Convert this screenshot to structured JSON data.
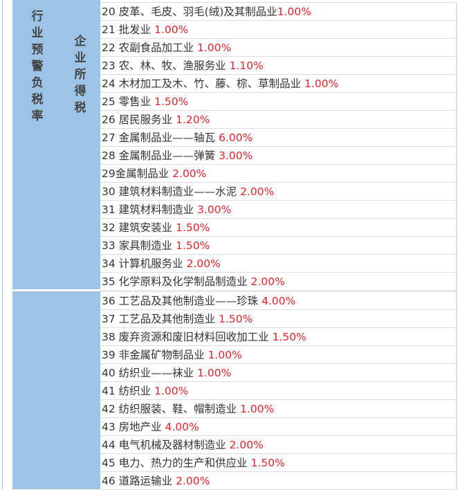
{
  "category_label": "行业预警负税率",
  "tax_label": "企业所得税",
  "colors": {
    "header_blue": "#9dc3e6",
    "rate_red": "#e8222a"
  },
  "section1": [
    {
      "name": "20 皮革、毛皮、羽毛(绒)及其制品业",
      "rate": "1.00%"
    },
    {
      "name": "21 批发业 ",
      "rate": "1.00%"
    },
    {
      "name": "22 农副食品加工业 ",
      "rate": "1.00%"
    },
    {
      "name": "23 农、林、牧、渔服务业 ",
      "rate": "1.10%"
    },
    {
      "name": "24 木材加工及木、竹、藤、棕、草制品业 ",
      "rate": "1.00%"
    },
    {
      "name": "25 零售业 ",
      "rate": "1.50%"
    },
    {
      "name": "26 居民服务业 ",
      "rate": "1.20%"
    },
    {
      "name": "27 金属制品业——轴瓦 ",
      "rate": "6.00%"
    },
    {
      "name": "28 金属制品业——弹簧 ",
      "rate": "3.00%"
    },
    {
      "name": "29金属制品业 ",
      "rate": "2.00%"
    },
    {
      "name": "30 建筑材料制造业——水泥 ",
      "rate": "2.00%"
    },
    {
      "name": "31 建筑材料制造业 ",
      "rate": "3.00%"
    },
    {
      "name": "32 建筑安装业 ",
      "rate": "1.50%"
    },
    {
      "name": "33 家具制造业 ",
      "rate": "1.50%"
    },
    {
      "name": "34 计算机服务业 ",
      "rate": "2.00%"
    },
    {
      "name": "35 化学原料及化学制品制造业 ",
      "rate": "2.00%"
    }
  ],
  "section2": [
    {
      "name": "36 工艺品及其他制造业——珍珠 ",
      "rate": "4.00%"
    },
    {
      "name": "37 工艺品及其他制造业 ",
      "rate": "1.50%"
    },
    {
      "name": "38 废弃资源和废旧材料回收加工业 ",
      "rate": "1.50%"
    },
    {
      "name": "39 非金属矿物制品业 ",
      "rate": "1.00%"
    },
    {
      "name": "40 纺织业——袜业 ",
      "rate": "1.00%"
    },
    {
      "name": "41 纺织业 ",
      "rate": "1.00%"
    },
    {
      "name": "42 纺织服装、鞋、帽制造业 ",
      "rate": "1.00%"
    },
    {
      "name": "43 房地产业 ",
      "rate": "4.00%"
    },
    {
      "name": "44 电气机械及器材制造业 ",
      "rate": "2.00%"
    },
    {
      "name": "45 电力、热力的生产和供应业 ",
      "rate": "1.50%"
    },
    {
      "name": "46 道路运输业 ",
      "rate": "2.00%"
    }
  ]
}
